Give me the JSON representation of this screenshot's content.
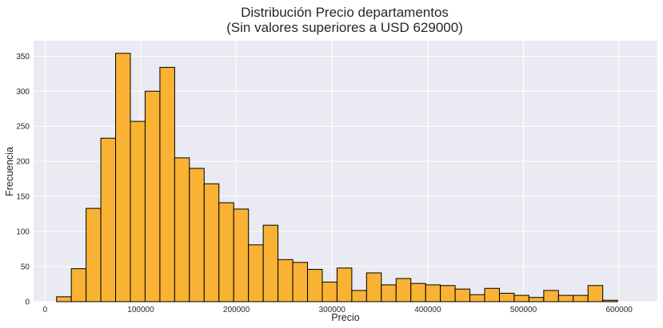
{
  "chart_data": {
    "type": "bar",
    "title_lines": [
      "Distribución Precio departamentos",
      "(Sin valores superiores a USD 629000)"
    ],
    "xlabel": "Precio",
    "ylabel": "Frecuencia",
    "xlim": [
      -12000,
      640000
    ],
    "ylim": [
      0,
      372
    ],
    "x_ticks": [
      0,
      100000,
      200000,
      300000,
      400000,
      500000,
      600000
    ],
    "x_tick_labels": [
      "0",
      "100000",
      "200000",
      "300000",
      "400000",
      "500000",
      "600000"
    ],
    "y_ticks": [
      0,
      50,
      100,
      150,
      200,
      250,
      300,
      350
    ],
    "y_tick_labels": [
      "0",
      "50",
      "100",
      "150",
      "200",
      "250",
      "300",
      "350"
    ],
    "grid": true,
    "bar_color": "#f9b233",
    "edge_color": "#000000",
    "background_color": "#eaeaf2",
    "bins_start": 12000,
    "bin_width": 15430,
    "values": [
      7,
      47,
      133,
      233,
      354,
      257,
      300,
      334,
      205,
      190,
      168,
      141,
      132,
      81,
      109,
      60,
      56,
      46,
      28,
      48,
      16,
      41,
      24,
      33,
      26,
      24,
      23,
      18,
      10,
      19,
      12,
      9,
      6,
      16,
      9,
      9,
      23,
      2
    ]
  }
}
